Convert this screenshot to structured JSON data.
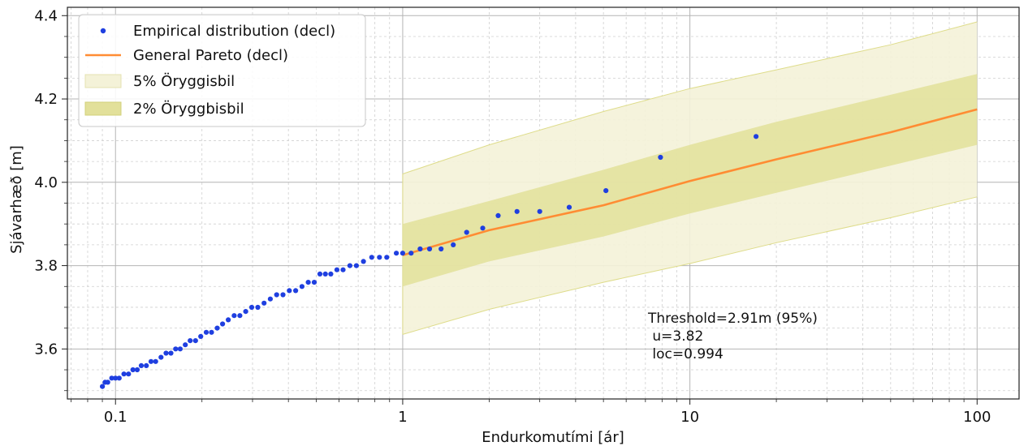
{
  "chart_data": {
    "type": "scatter",
    "title": "",
    "xlabel": "Endurkomutími [ár]",
    "ylabel": "Sjávarhæð [m]",
    "xscale": "log",
    "xlim": [
      0.068,
      140
    ],
    "ylim": [
      3.48,
      4.42
    ],
    "grid": true,
    "legend_position": "top-left",
    "x_ticks": [
      {
        "value": 0.1,
        "label": "0.1"
      },
      {
        "value": 1,
        "label": "1"
      },
      {
        "value": 10,
        "label": "10"
      },
      {
        "value": 100,
        "label": "100"
      }
    ],
    "y_ticks": [
      {
        "value": 3.6,
        "label": "3.6"
      },
      {
        "value": 3.8,
        "label": "3.8"
      },
      {
        "value": 4.0,
        "label": "4.0"
      },
      {
        "value": 4.2,
        "label": "4.2"
      },
      {
        "value": 4.4,
        "label": "4.4"
      }
    ],
    "legend": [
      {
        "label": "Empirical distribution (decl)",
        "kind": "marker",
        "color": "#1f3fe0"
      },
      {
        "label": "General Pareto (decl)",
        "kind": "line",
        "color": "#ff8c33"
      },
      {
        "label": "5% Öryggisbil",
        "kind": "patch",
        "color": "#f4f2d8"
      },
      {
        "label": "2% Öryggbisbil",
        "kind": "patch",
        "color": "#e2e09a"
      }
    ],
    "empirical": {
      "name": "Empirical distribution (decl)",
      "x": [
        0.09,
        0.092,
        0.094,
        0.097,
        0.1,
        0.103,
        0.107,
        0.111,
        0.115,
        0.119,
        0.123,
        0.128,
        0.133,
        0.138,
        0.144,
        0.15,
        0.156,
        0.162,
        0.168,
        0.175,
        0.182,
        0.19,
        0.198,
        0.207,
        0.216,
        0.226,
        0.236,
        0.247,
        0.259,
        0.271,
        0.284,
        0.298,
        0.313,
        0.329,
        0.346,
        0.364,
        0.383,
        0.403,
        0.424,
        0.446,
        0.469,
        0.492,
        0.515,
        0.538,
        0.562,
        0.59,
        0.62,
        0.655,
        0.69,
        0.73,
        0.78,
        0.83,
        0.88,
        0.95,
        1.0,
        1.07,
        1.15,
        1.24,
        1.36,
        1.5,
        1.67,
        1.9,
        2.15,
        2.5,
        3.0,
        3.8,
        5.1,
        7.9,
        17.0
      ],
      "y": [
        3.51,
        3.52,
        3.52,
        3.53,
        3.53,
        3.53,
        3.54,
        3.54,
        3.55,
        3.55,
        3.56,
        3.56,
        3.57,
        3.57,
        3.58,
        3.59,
        3.59,
        3.6,
        3.6,
        3.61,
        3.62,
        3.62,
        3.63,
        3.64,
        3.64,
        3.65,
        3.66,
        3.67,
        3.68,
        3.68,
        3.69,
        3.7,
        3.7,
        3.71,
        3.72,
        3.73,
        3.73,
        3.74,
        3.74,
        3.75,
        3.76,
        3.76,
        3.78,
        3.78,
        3.78,
        3.79,
        3.79,
        3.8,
        3.8,
        3.81,
        3.82,
        3.82,
        3.82,
        3.83,
        3.83,
        3.83,
        3.84,
        3.84,
        3.84,
        3.85,
        3.88,
        3.89,
        3.92,
        3.93,
        3.93,
        3.94,
        3.98,
        4.06,
        4.11
      ],
      "color": "#1f3fe0"
    },
    "pareto": {
      "name": "General Pareto (decl)",
      "x": [
        1,
        2,
        5,
        10,
        20,
        50,
        100
      ],
      "y": [
        3.825,
        3.885,
        3.945,
        4.003,
        4.055,
        4.12,
        4.175
      ],
      "color": "#ff8c33"
    },
    "band_5": {
      "name": "5% Öryggisbil",
      "x": [
        1,
        2,
        5,
        10,
        20,
        50,
        100
      ],
      "upper": [
        4.02,
        4.09,
        4.17,
        4.225,
        4.27,
        4.33,
        4.385
      ],
      "lower": [
        3.635,
        3.695,
        3.76,
        3.805,
        3.855,
        3.915,
        3.965
      ],
      "color": "#f4f2d8",
      "edge_color": "#dedc8a"
    },
    "band_2": {
      "name": "2% Öryggbisbil",
      "x": [
        1,
        2,
        5,
        10,
        20,
        50,
        100
      ],
      "upper": [
        3.9,
        3.955,
        4.03,
        4.09,
        4.145,
        4.21,
        4.26
      ],
      "lower": [
        3.75,
        3.81,
        3.87,
        3.925,
        3.975,
        4.04,
        4.09
      ],
      "color": "#e2e09a"
    },
    "annotation": {
      "lines": [
        "Threshold=2.91m (95%)",
        " u=3.82",
        " loc=0.994"
      ]
    }
  }
}
